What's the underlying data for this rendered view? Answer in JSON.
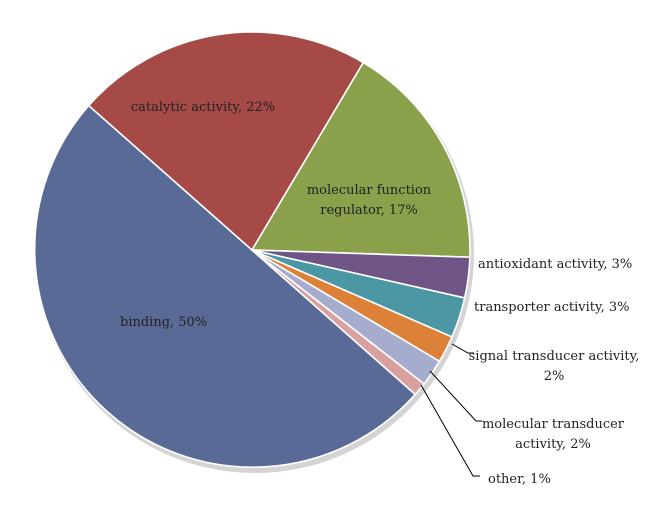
{
  "chart_data": {
    "type": "pie",
    "title": "",
    "slices": [
      {
        "label": "binding, 50%",
        "value": 50,
        "color": "#5a6a96"
      },
      {
        "label": "catalytic activity, 22%",
        "value": 22,
        "color": "#a54a46"
      },
      {
        "label": "molecular function regulator, 17%",
        "value": 17,
        "color": "#8aa04b"
      },
      {
        "label": "antioxidant activity, 3%",
        "value": 3,
        "color": "#6f5585"
      },
      {
        "label": "transporter activity, 3%",
        "value": 3,
        "color": "#4b97a3"
      },
      {
        "label": "signal transducer activity, 2%",
        "value": 2,
        "color": "#dd8139"
      },
      {
        "label": "molecular transducer activity, 2%",
        "value": 2,
        "color": "#a5accd"
      },
      {
        "label": "other, 1%",
        "value": 1,
        "color": "#d9a0a0"
      }
    ],
    "legend": "none"
  }
}
